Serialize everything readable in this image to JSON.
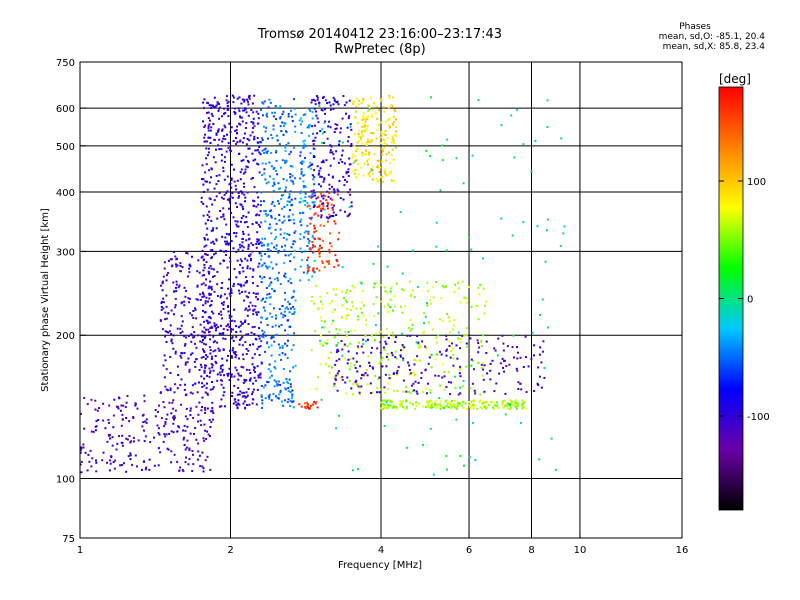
{
  "chart_data": {
    "type": "scatter",
    "title": "Tromsø 20140412 23:16:00–23:17:43",
    "subtitle": "RwPretec (8p)",
    "xlabel": "Frequency [MHz]",
    "ylabel": "Stationary phase Virtual Height [km]",
    "xscale": "log",
    "yscale": "log",
    "xlim": [
      1,
      16
    ],
    "ylim": [
      75,
      750
    ],
    "x_ticks": [
      1,
      2,
      4,
      6,
      8,
      10,
      16
    ],
    "x_tick_labels": [
      "1",
      "2",
      "4",
      "6",
      "8",
      "10",
      "16"
    ],
    "y_ticks": [
      75,
      100,
      200,
      300,
      400,
      500,
      600,
      750
    ],
    "y_tick_labels": [
      "75",
      "100",
      "200",
      "300",
      "400",
      "500",
      "600",
      "750"
    ],
    "grid_x": [
      2,
      4,
      6,
      8,
      10
    ],
    "grid_y": [
      100,
      200,
      300,
      400,
      500,
      600
    ],
    "grid": true,
    "colorbar": {
      "label": "[deg]",
      "range": [
        -180,
        180
      ],
      "ticks": [
        100,
        0,
        -100
      ],
      "tick_labels": [
        "100",
        "0",
        "-100"
      ],
      "colors": [
        "#000000",
        "#6a00a8",
        "#0000ff",
        "#00c8ff",
        "#00ff00",
        "#ffff00",
        "#ff8000",
        "#ff0000"
      ]
    },
    "stats": {
      "header": "Phases",
      "line_o": "mean, sd,O: -85.1, 20.4",
      "line_x": "mean, sd,X:  85.8, 23.4"
    },
    "series": [
      {
        "x_range": [
          1.0,
          1.85
        ],
        "y_range": [
          103,
          150
        ],
        "phase": -110,
        "count": 260
      },
      {
        "x_range": [
          1.45,
          1.85
        ],
        "y_range": [
          150,
          300
        ],
        "phase": -105,
        "count": 240
      },
      {
        "x_range": [
          1.75,
          2.3
        ],
        "y_range": [
          140,
          640
        ],
        "phase": -100,
        "count": 800
      },
      {
        "x_range": [
          2.3,
          2.7
        ],
        "y_range": [
          140,
          640
        ],
        "phase": -50,
        "count": 420
      },
      {
        "x_range": [
          2.75,
          2.95
        ],
        "y_range": [
          260,
          600
        ],
        "phase": -40,
        "count": 120
      },
      {
        "x_range": [
          2.9,
          3.5
        ],
        "y_range": [
          350,
          640
        ],
        "phase": -100,
        "count": 180
      },
      {
        "x_range": [
          3.5,
          4.3
        ],
        "y_range": [
          420,
          640
        ],
        "phase": 90,
        "count": 200
      },
      {
        "x_range": [
          2.85,
          3.3
        ],
        "y_range": [
          270,
          400
        ],
        "phase": 160,
        "count": 90
      },
      {
        "x_range": [
          2.7,
          3.0
        ],
        "y_range": [
          140,
          145
        ],
        "phase": 160,
        "count": 20
      },
      {
        "x_range": [
          2.9,
          6.5
        ],
        "y_range": [
          150,
          260
        ],
        "phase": 60,
        "count": 300
      },
      {
        "x_range": [
          4.0,
          7.8
        ],
        "y_range": [
          140,
          146
        ],
        "phase": 60,
        "count": 200
      },
      {
        "x_range": [
          3.2,
          8.5
        ],
        "y_range": [
          150,
          200
        ],
        "phase": -110,
        "count": 220
      },
      {
        "x_range": [
          3.0,
          9.5
        ],
        "y_range": [
          100,
          650
        ],
        "phase": 0,
        "count": 120
      }
    ]
  }
}
